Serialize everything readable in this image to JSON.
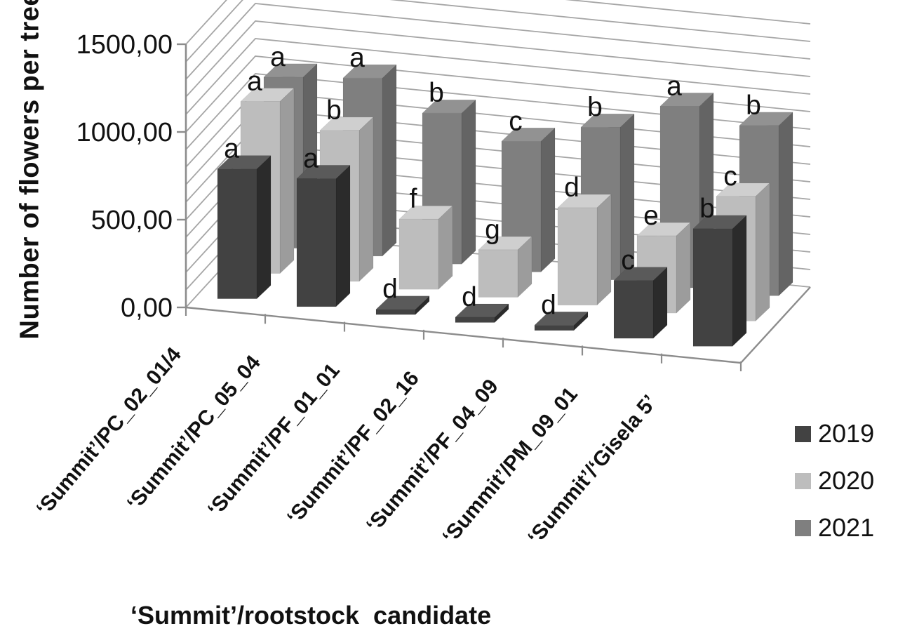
{
  "figure": {
    "y_axis_title": "Number of flowers per tree",
    "x_axis_title": "‘Summit’/rootstock  candidate",
    "y_tick_labels": [
      "0,00",
      "500,00",
      "1000,00",
      "1500,00"
    ],
    "legend_position": "right-bottom"
  },
  "chart_data": {
    "type": "bar",
    "projection": "3d-clustered-depth",
    "title": "",
    "xlabel": "‘Summit’/rootstock candidate",
    "ylabel": "Number of flowers per tree",
    "ylim": [
      0,
      1500
    ],
    "y_major_step": 500,
    "y_minor_step": 100,
    "decimal_separator": ",",
    "grid": true,
    "legend_entries": [
      "2019",
      "2020",
      "2021"
    ],
    "categories": [
      "‘Summit’/PC_02_01/4",
      "‘Summit’/PC_05_04",
      "‘Summit’/PF_01_01",
      "‘Summit’/PF_02_16",
      "‘Summit’/PF_04_09",
      "‘Summit’/PM_09_01",
      "‘Summit’/‘Gisela 5’"
    ],
    "series": [
      {
        "name": "2019",
        "values": [
          740,
          730,
          30,
          30,
          30,
          330,
          670
        ],
        "letters": [
          "a",
          "a",
          "d",
          "d",
          "d",
          "c",
          "b"
        ],
        "color_faces": {
          "front": "#424242",
          "side": "#2b2b2b",
          "top": "#5a5a5a"
        }
      },
      {
        "name": "2020",
        "values": [
          980,
          860,
          400,
          270,
          555,
          440,
          710
        ],
        "letters": [
          "a",
          "b",
          "f",
          "g",
          "d",
          "e",
          "c"
        ],
        "color_faces": {
          "front": "#bdbdbd",
          "side": "#9c9c9c",
          "top": "#cfcfcf"
        }
      },
      {
        "name": "2021",
        "values": [
          975,
          1015,
          860,
          745,
          870,
          1035,
          970
        ],
        "letters": [
          "a",
          "a",
          "b",
          "c",
          "b",
          "a",
          "b"
        ],
        "color_faces": {
          "front": "#7f7f7f",
          "side": "#646464",
          "top": "#929292"
        }
      }
    ],
    "axis_color": "#8c8c8c",
    "gridline_color": "#a6a6a6",
    "text_color": "#111111"
  }
}
